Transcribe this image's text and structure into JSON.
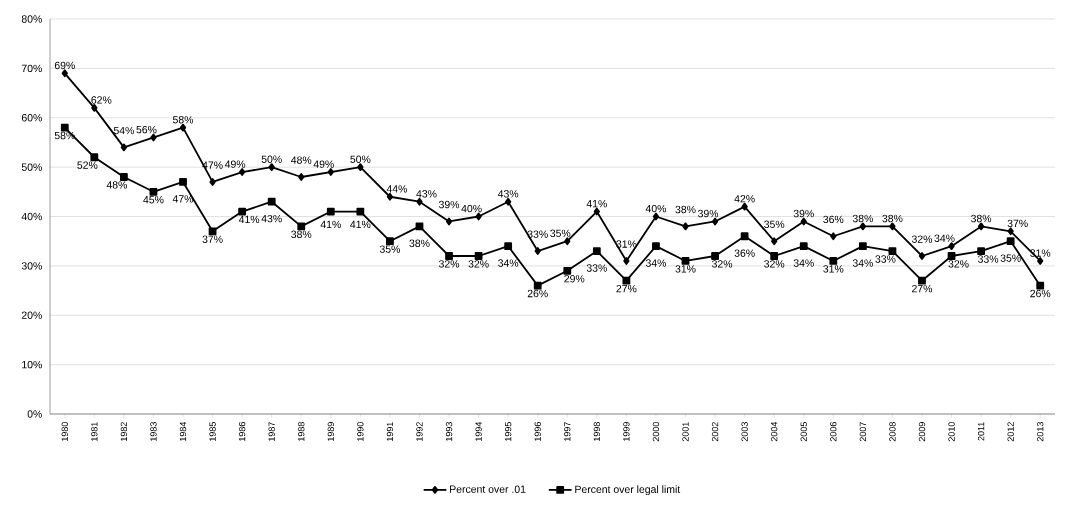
{
  "chart_data": {
    "type": "line",
    "categories": [
      "1980",
      "1981",
      "1982",
      "1983",
      "1984",
      "1985",
      "1986",
      "1987",
      "1988",
      "1989",
      "1990",
      "1991",
      "1992",
      "1993",
      "1994",
      "1995",
      "1996",
      "1997",
      "1998",
      "1999",
      "2000",
      "2001",
      "2002",
      "2003",
      "2004",
      "2005",
      "2006",
      "2007",
      "2008",
      "2009",
      "2010",
      "2011",
      "2012",
      "2013"
    ],
    "series": [
      {
        "name": "Percent over .01",
        "color": "#000000",
        "marker": "diamond",
        "values": [
          69,
          62,
          54,
          56,
          58,
          47,
          49,
          50,
          48,
          49,
          50,
          44,
          43,
          39,
          40,
          43,
          33,
          35,
          41,
          31,
          40,
          38,
          39,
          42,
          35,
          39,
          36,
          38,
          38,
          32,
          34,
          38,
          37,
          31
        ],
        "value_labels": [
          "69%",
          "62%",
          "54%",
          "56%",
          "58%",
          "47%",
          "49%",
          "50%",
          "48%",
          "49%",
          "50%",
          "44%",
          "43%",
          "39%",
          "40%",
          "43%",
          "33%",
          "35%",
          "41%",
          "31%",
          "40%",
          "38%",
          "39%",
          "42%",
          "35%",
          "39%",
          "36%",
          "38%",
          "38%",
          "32%",
          "34%",
          "38%",
          "37%",
          "31%"
        ]
      },
      {
        "name": "Percent over legal limit",
        "color": "#000000",
        "marker": "square",
        "values": [
          58,
          52,
          48,
          45,
          47,
          37,
          41,
          43,
          38,
          41,
          41,
          35,
          38,
          32,
          32,
          34,
          26,
          29,
          33,
          27,
          34,
          31,
          32,
          36,
          32,
          34,
          31,
          34,
          33,
          27,
          32,
          33,
          35,
          26
        ],
        "value_labels": [
          "58%",
          "52%",
          "48%",
          "45%",
          "47%",
          "37%",
          "41%",
          "43%",
          "38%",
          "41%",
          "41%",
          "35%",
          "38%",
          "32%",
          "32%",
          "34%",
          "26%",
          "29%",
          "33%",
          "27%",
          "34%",
          "31%",
          "32%",
          "36%",
          "32%",
          "34%",
          "31%",
          "34%",
          "33%",
          "27%",
          "32%",
          "33%",
          "35%",
          "26%"
        ]
      }
    ],
    "ylim": [
      0,
      80
    ],
    "yticks": [
      {
        "value": 0,
        "label": "0%"
      },
      {
        "value": 10,
        "label": "10%"
      },
      {
        "value": 20,
        "label": "20%"
      },
      {
        "value": 30,
        "label": "30%"
      },
      {
        "value": 40,
        "label": "40%"
      },
      {
        "value": 50,
        "label": "50%"
      },
      {
        "value": 60,
        "label": "60%"
      },
      {
        "value": 70,
        "label": "70%"
      },
      {
        "value": 80,
        "label": "80%"
      }
    ],
    "grid": "y",
    "legend": "bottom",
    "line_style": "solid"
  }
}
